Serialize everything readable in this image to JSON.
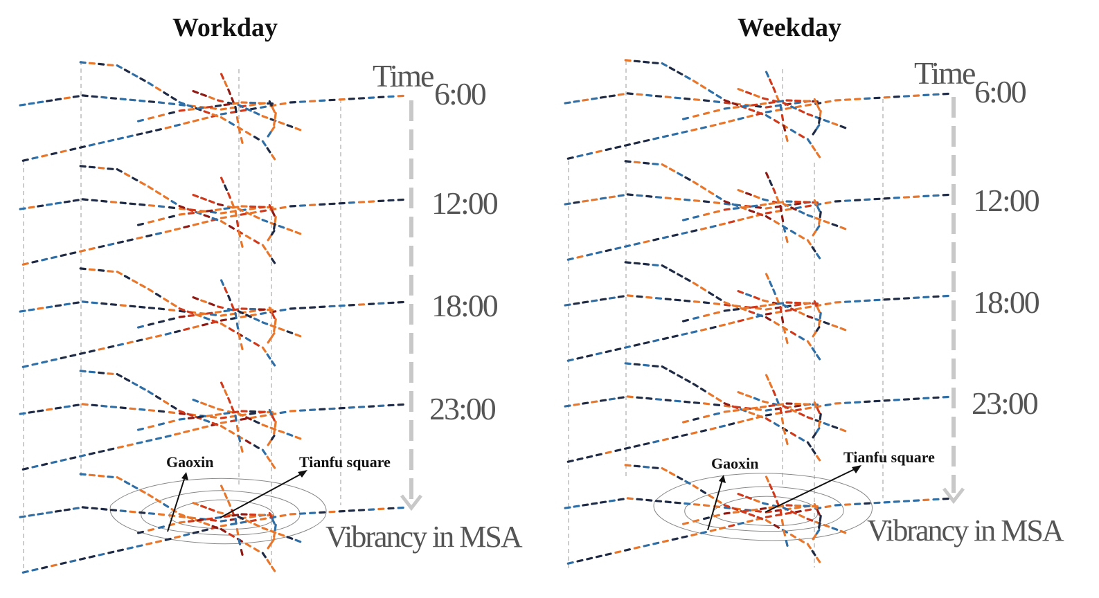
{
  "panels": [
    {
      "key": "workday",
      "title": "Workday",
      "time_word": "Time",
      "times": [
        "6:00",
        "12:00",
        "18:00",
        "23:00"
      ],
      "base_label": "Vibrancy in MSA",
      "annotations": [
        "Gaoxin",
        "Tianfu square"
      ]
    },
    {
      "key": "weekday",
      "title": "Weekday",
      "time_word": "Time",
      "times": [
        "6:00",
        "12:00",
        "18:00",
        "23:00"
      ],
      "base_label": "Vibrancy in MSA",
      "annotations": [
        "Gaoxin",
        "Tianfu square"
      ]
    }
  ],
  "colors": {
    "low": "#1f2a44",
    "mid_low": "#2f6fa6",
    "mid": "#e8762b",
    "high": "#cf3a1c",
    "very_high": "#8e1a14",
    "guide": "#bbbbbb",
    "arrow": "#c8c8c8"
  }
}
